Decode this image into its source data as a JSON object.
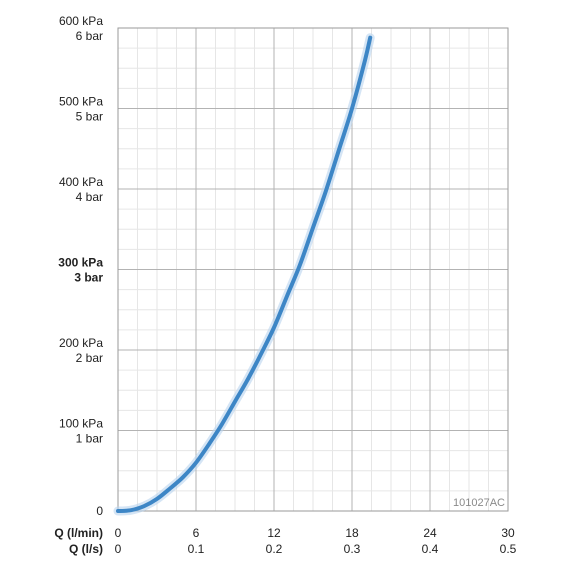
{
  "chart_data": {
    "type": "line",
    "title": "",
    "xlabel": "",
    "ylabel": "",
    "code_label": "101027AC",
    "y_ticks": [
      {
        "value": 0,
        "kpa": "0",
        "bar": "",
        "bold": false
      },
      {
        "value": 100,
        "kpa": "100 kPa",
        "bar": "1 bar",
        "bold": false
      },
      {
        "value": 200,
        "kpa": "200 kPa",
        "bar": "2 bar",
        "bold": false
      },
      {
        "value": 300,
        "kpa": "300 kPa",
        "bar": "3 bar",
        "bold": true
      },
      {
        "value": 400,
        "kpa": "400 kPa",
        "bar": "4 bar",
        "bold": false
      },
      {
        "value": 500,
        "kpa": "500 kPa",
        "bar": "5 bar",
        "bold": false
      },
      {
        "value": 600,
        "kpa": "600 kPa",
        "bar": "6 bar",
        "bold": false
      }
    ],
    "x_axis_1": {
      "label": "Q (l/min)",
      "ticks": [
        {
          "value": 0,
          "label": "0"
        },
        {
          "value": 6,
          "label": "6"
        },
        {
          "value": 12,
          "label": "12"
        },
        {
          "value": 18,
          "label": "18"
        },
        {
          "value": 24,
          "label": "24"
        },
        {
          "value": 30,
          "label": "30"
        }
      ]
    },
    "x_axis_2": {
      "label": "Q (l/s)",
      "ticks": [
        {
          "value": 0,
          "label": "0"
        },
        {
          "value": 6,
          "label": "0.1"
        },
        {
          "value": 12,
          "label": "0.2"
        },
        {
          "value": 18,
          "label": "0.3"
        },
        {
          "value": 24,
          "label": "0.4"
        },
        {
          "value": 30,
          "label": "0.5"
        }
      ]
    },
    "xlim": [
      0,
      30
    ],
    "ylim": [
      0,
      600
    ],
    "grid": true,
    "series": [
      {
        "color": "#3d86c6",
        "x": [
          0,
          1,
          2,
          3,
          4,
          5,
          6,
          7,
          8,
          9,
          10,
          11,
          12,
          13,
          14,
          15,
          16,
          17,
          18,
          19,
          19.4
        ],
        "y": [
          0,
          1,
          6,
          15,
          28,
          42,
          60,
          83,
          108,
          136,
          164,
          195,
          228,
          267,
          306,
          352,
          398,
          449,
          500,
          560,
          588
        ]
      }
    ]
  }
}
